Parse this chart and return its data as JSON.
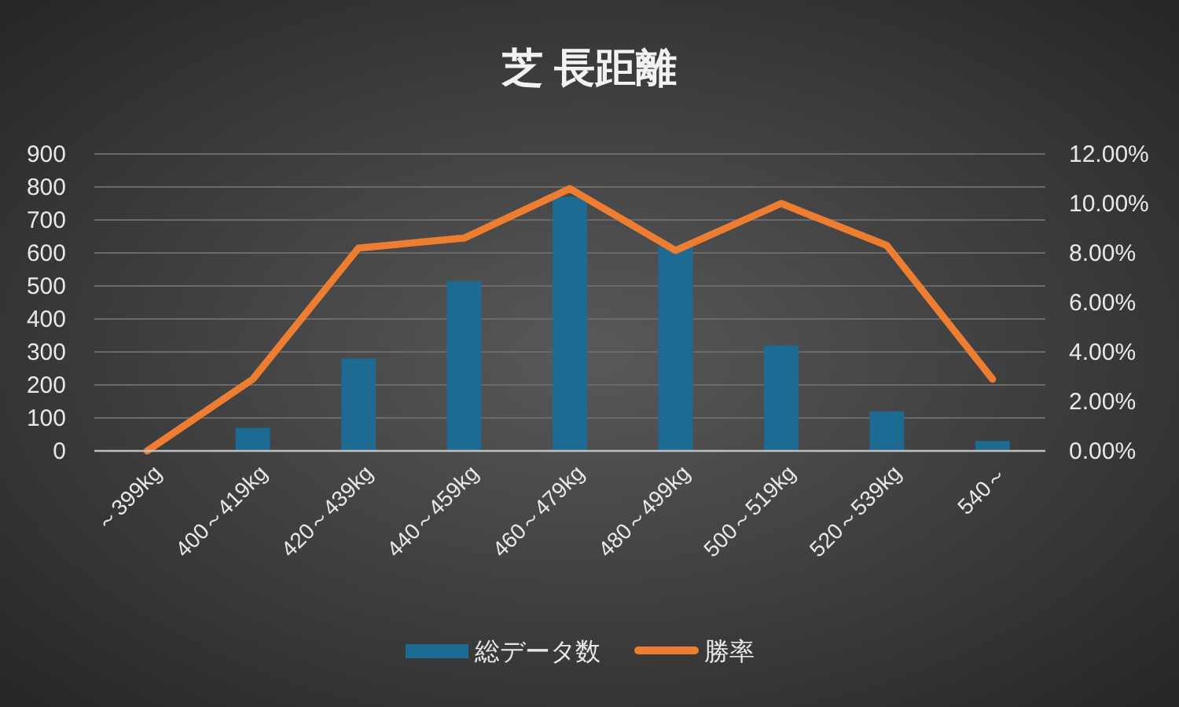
{
  "chart_data": {
    "type": "bar",
    "title": "芝 長距離",
    "categories": [
      "～399kg",
      "400～419kg",
      "420～439kg",
      "440～459kg",
      "460～479kg",
      "480～499kg",
      "500～519kg",
      "520～539kg",
      "540～"
    ],
    "series": [
      {
        "name": "総データ数",
        "color": "#1d6a92",
        "values": [
          null,
          70,
          280,
          515,
          770,
          620,
          320,
          120,
          30
        ]
      },
      {
        "name": "勝率",
        "type": "line",
        "axis": "y2",
        "color": "#ed7d31",
        "values": [
          0,
          2.9,
          8.2,
          8.6,
          10.6,
          8.1,
          10.0,
          8.3,
          2.9
        ]
      }
    ],
    "ylim": [
      0,
      900
    ],
    "yticks": [
      0,
      100,
      200,
      300,
      400,
      500,
      600,
      700,
      800,
      900
    ],
    "y2lim": [
      0,
      12
    ],
    "y2ticks": [
      {
        "value": 0,
        "label": "0.00%"
      },
      {
        "value": 2,
        "label": "2.00%"
      },
      {
        "value": 4,
        "label": "4.00%"
      },
      {
        "value": 6,
        "label": "6.00%"
      },
      {
        "value": 8,
        "label": "8.00%"
      },
      {
        "value": 10,
        "label": "10.00%"
      },
      {
        "value": 12,
        "label": "12.00%"
      }
    ],
    "grid": "y",
    "legend": "bottom"
  }
}
